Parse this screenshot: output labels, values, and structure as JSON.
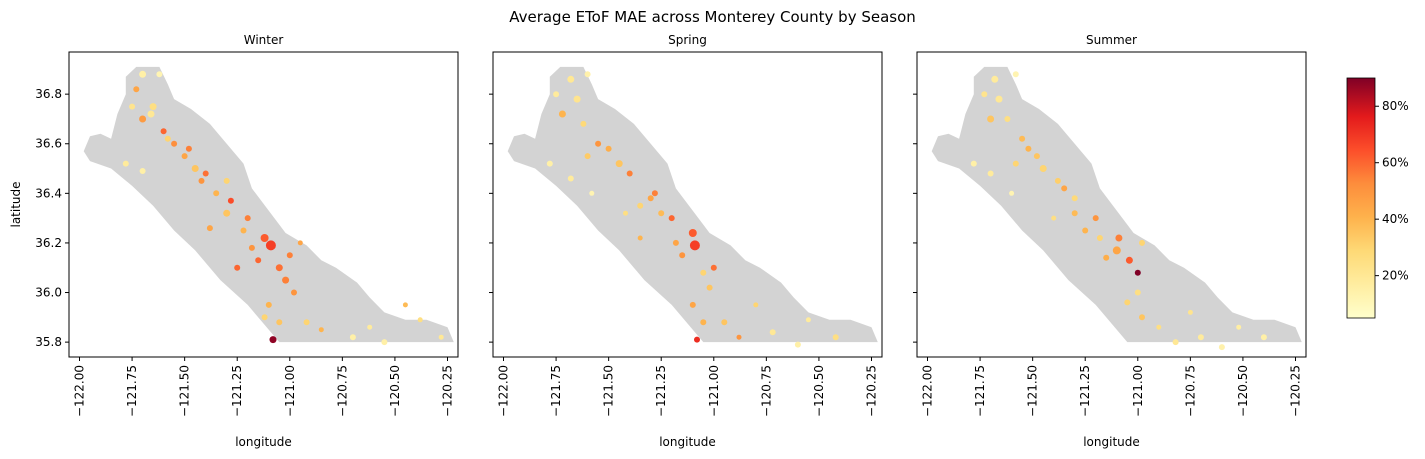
{
  "suptitle": "Average EToF MAE across Monterey County by Season",
  "chart_data": {
    "type": "scatter",
    "title": "Average EToF MAE across Monterey County by Season",
    "xlabel": "longitude",
    "ylabel": "latitude",
    "xlim": [
      -122.05,
      -120.2
    ],
    "ylim": [
      35.74,
      36.97
    ],
    "xticks": [
      -122.0,
      -121.75,
      -121.5,
      -121.25,
      -121.0,
      -120.75,
      -120.5,
      -120.25
    ],
    "xtick_labels": [
      "−122.00",
      "−121.75",
      "−121.50",
      "−121.25",
      "−121.00",
      "−120.75",
      "−120.50",
      "−120.25"
    ],
    "yticks": [
      35.8,
      36.0,
      36.2,
      36.4,
      36.6,
      36.8
    ],
    "ytick_labels": [
      "35.8",
      "36.0",
      "36.2",
      "36.4",
      "36.6",
      "36.8"
    ],
    "colorbar": {
      "colormap": "YlOrRd",
      "range": [
        5,
        90
      ],
      "ticks": [
        20,
        40,
        60,
        80
      ],
      "tick_labels": [
        "20%",
        "40%",
        "60%",
        "80%"
      ]
    },
    "background_color": "#d3d3d3",
    "panels": [
      {
        "title": "Winter",
        "points": [
          [
            -121.08,
            35.81,
            88,
            6
          ],
          [
            -121.09,
            36.19,
            68,
            9
          ],
          [
            -121.12,
            36.22,
            62,
            7
          ],
          [
            -121.05,
            36.1,
            58,
            6
          ],
          [
            -121.02,
            36.05,
            55,
            6
          ],
          [
            -120.98,
            36.0,
            50,
            5
          ],
          [
            -121.15,
            36.13,
            60,
            5
          ],
          [
            -121.28,
            36.37,
            65,
            5
          ],
          [
            -121.4,
            36.48,
            58,
            5
          ],
          [
            -121.55,
            36.6,
            52,
            5
          ],
          [
            -121.7,
            36.7,
            48,
            6
          ],
          [
            -121.73,
            36.82,
            45,
            5
          ],
          [
            -121.6,
            36.65,
            60,
            5
          ],
          [
            -120.95,
            36.2,
            45,
            4
          ],
          [
            -121.2,
            36.3,
            55,
            5
          ],
          [
            -121.35,
            36.4,
            40,
            5
          ],
          [
            -121.45,
            36.5,
            35,
            6
          ],
          [
            -121.65,
            36.75,
            25,
            6
          ],
          [
            -121.7,
            36.88,
            15,
            6
          ],
          [
            -121.62,
            36.88,
            12,
            5
          ],
          [
            -121.78,
            36.52,
            18,
            5
          ],
          [
            -121.7,
            36.49,
            15,
            5
          ],
          [
            -121.1,
            35.95,
            40,
            5
          ],
          [
            -121.05,
            35.88,
            35,
            5
          ],
          [
            -120.92,
            35.88,
            30,
            5
          ],
          [
            -120.85,
            35.85,
            40,
            4
          ],
          [
            -120.62,
            35.86,
            18,
            4
          ],
          [
            -120.55,
            35.8,
            15,
            5
          ],
          [
            -120.45,
            35.95,
            38,
            4
          ],
          [
            -120.38,
            35.89,
            25,
            4
          ],
          [
            -120.28,
            35.82,
            20,
            4
          ],
          [
            -120.7,
            35.82,
            15,
            5
          ],
          [
            -121.5,
            36.55,
            45,
            5
          ],
          [
            -121.42,
            36.45,
            50,
            5
          ],
          [
            -121.3,
            36.32,
            35,
            6
          ],
          [
            -121.58,
            36.62,
            30,
            5
          ],
          [
            -121.66,
            36.72,
            20,
            6
          ],
          [
            -121.75,
            36.75,
            22,
            5
          ],
          [
            -121.48,
            36.58,
            55,
            5
          ],
          [
            -121.22,
            36.25,
            40,
            5
          ],
          [
            -121.18,
            36.18,
            50,
            5
          ],
          [
            -121.0,
            36.15,
            55,
            5
          ],
          [
            -121.25,
            36.1,
            60,
            5
          ],
          [
            -121.38,
            36.26,
            45,
            5
          ],
          [
            -121.12,
            35.9,
            30,
            5
          ],
          [
            -121.3,
            36.45,
            30,
            5
          ]
        ]
      },
      {
        "title": "Spring",
        "points": [
          [
            -121.08,
            35.81,
            72,
            5
          ],
          [
            -121.09,
            36.19,
            68,
            9
          ],
          [
            -121.1,
            36.24,
            62,
            7
          ],
          [
            -121.0,
            36.1,
            58,
            5
          ],
          [
            -121.2,
            36.3,
            60,
            5
          ],
          [
            -121.4,
            36.48,
            55,
            5
          ],
          [
            -121.55,
            36.6,
            50,
            5
          ],
          [
            -121.72,
            36.72,
            40,
            6
          ],
          [
            -121.68,
            36.86,
            20,
            6
          ],
          [
            -121.6,
            36.88,
            14,
            5
          ],
          [
            -121.3,
            36.38,
            45,
            5
          ],
          [
            -121.45,
            36.52,
            35,
            6
          ],
          [
            -121.62,
            36.68,
            28,
            5
          ],
          [
            -121.78,
            36.52,
            15,
            5
          ],
          [
            -121.68,
            36.46,
            18,
            5
          ],
          [
            -121.58,
            36.4,
            12,
            4
          ],
          [
            -121.42,
            36.32,
            25,
            4
          ],
          [
            -121.35,
            36.22,
            40,
            4
          ],
          [
            -121.1,
            35.95,
            45,
            5
          ],
          [
            -121.05,
            35.88,
            40,
            5
          ],
          [
            -120.95,
            35.88,
            35,
            5
          ],
          [
            -120.88,
            35.82,
            50,
            4
          ],
          [
            -120.72,
            35.84,
            20,
            5
          ],
          [
            -120.6,
            35.79,
            15,
            5
          ],
          [
            -120.55,
            35.89,
            18,
            4
          ],
          [
            -120.42,
            35.82,
            25,
            5
          ],
          [
            -120.8,
            35.95,
            30,
            4
          ],
          [
            -121.15,
            36.15,
            50,
            5
          ],
          [
            -121.25,
            36.32,
            38,
            5
          ],
          [
            -121.5,
            36.58,
            42,
            5
          ],
          [
            -121.65,
            36.78,
            22,
            6
          ],
          [
            -121.75,
            36.8,
            18,
            5
          ],
          [
            -121.28,
            36.4,
            55,
            5
          ],
          [
            -121.18,
            36.2,
            45,
            5
          ],
          [
            -121.02,
            36.02,
            35,
            5
          ],
          [
            -121.35,
            36.35,
            30,
            5
          ],
          [
            -121.05,
            36.08,
            30,
            5
          ],
          [
            -121.6,
            36.55,
            33,
            5
          ]
        ]
      },
      {
        "title": "Summer",
        "points": [
          [
            -121.0,
            36.08,
            90,
            5
          ],
          [
            -121.04,
            36.13,
            62,
            6
          ],
          [
            -121.09,
            36.22,
            55,
            6
          ],
          [
            -121.1,
            36.17,
            45,
            7
          ],
          [
            -121.2,
            36.3,
            50,
            5
          ],
          [
            -121.35,
            36.42,
            45,
            5
          ],
          [
            -121.52,
            36.58,
            40,
            5
          ],
          [
            -121.7,
            36.7,
            35,
            6
          ],
          [
            -121.68,
            36.86,
            18,
            6
          ],
          [
            -121.58,
            36.88,
            12,
            5
          ],
          [
            -121.3,
            36.32,
            38,
            5
          ],
          [
            -121.45,
            36.5,
            30,
            6
          ],
          [
            -121.62,
            36.7,
            25,
            5
          ],
          [
            -121.78,
            36.52,
            15,
            5
          ],
          [
            -121.7,
            36.48,
            18,
            5
          ],
          [
            -121.6,
            36.4,
            12,
            4
          ],
          [
            -121.4,
            36.3,
            25,
            4
          ],
          [
            -121.15,
            36.14,
            42,
            5
          ],
          [
            -121.05,
            35.96,
            30,
            5
          ],
          [
            -120.98,
            35.9,
            35,
            5
          ],
          [
            -120.9,
            35.86,
            25,
            4
          ],
          [
            -120.82,
            35.8,
            20,
            5
          ],
          [
            -120.7,
            35.82,
            18,
            5
          ],
          [
            -120.6,
            35.78,
            14,
            5
          ],
          [
            -120.52,
            35.86,
            16,
            4
          ],
          [
            -120.4,
            35.82,
            15,
            5
          ],
          [
            -120.75,
            35.92,
            22,
            4
          ],
          [
            -121.25,
            36.25,
            40,
            5
          ],
          [
            -121.38,
            36.45,
            32,
            5
          ],
          [
            -121.55,
            36.62,
            38,
            5
          ],
          [
            -121.66,
            36.78,
            20,
            6
          ],
          [
            -121.73,
            36.8,
            22,
            5
          ],
          [
            -121.48,
            36.55,
            35,
            5
          ],
          [
            -121.18,
            36.22,
            30,
            5
          ],
          [
            -121.0,
            36.0,
            25,
            5
          ],
          [
            -121.3,
            36.38,
            28,
            5
          ],
          [
            -120.98,
            36.2,
            30,
            5
          ],
          [
            -121.58,
            36.52,
            30,
            5
          ]
        ]
      }
    ]
  }
}
